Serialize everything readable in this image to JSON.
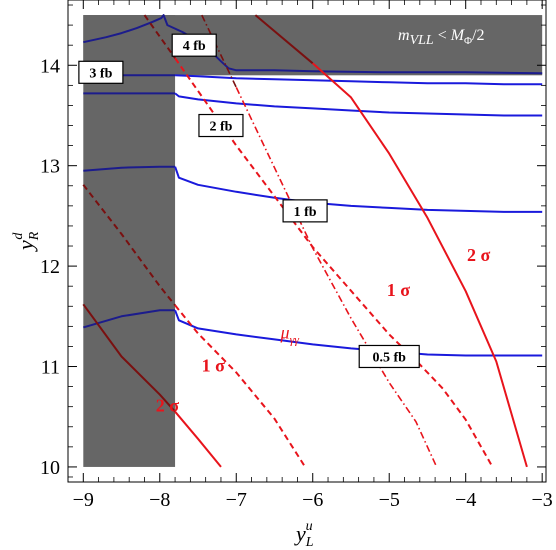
{
  "chart_data": {
    "type": "line",
    "title": "",
    "xlabel": "y_L^u",
    "ylabel": "y_R^d",
    "xlabel_parts": {
      "base": "y",
      "sub": "L",
      "sup": "u"
    },
    "ylabel_parts": {
      "base": "y",
      "sub": "R",
      "sup": "d"
    },
    "xlim": [
      -9.2,
      -2.95
    ],
    "ylim": [
      9.85,
      14.65
    ],
    "x_ticks": [
      -9,
      -8,
      -7,
      -6,
      -5,
      -4,
      -3
    ],
    "x_tick_labels": [
      "−9",
      "−8",
      "−7",
      "−6",
      "−5",
      "−4",
      "−3"
    ],
    "y_ticks": [
      10,
      11,
      12,
      13,
      14
    ],
    "y_tick_labels": [
      "10",
      "11",
      "12",
      "13",
      "14"
    ],
    "grid": false,
    "excluded_regions": [
      {
        "name": "vertical-band",
        "x": [
          -9.0,
          -7.8
        ],
        "y": [
          10.0,
          14.5
        ],
        "color": "#666666"
      },
      {
        "name": "top-band",
        "x": [
          -9.0,
          -3.0
        ],
        "y": [
          13.9,
          14.5
        ],
        "color": "#666666",
        "label": "m_VLL < M_Φ/2"
      }
    ],
    "region_label_parts": {
      "m": "m",
      "msub": "VLL",
      "op": " < ",
      "M": "M",
      "Msub": "Φ",
      "tail": "/2"
    },
    "cross_section_contours": [
      {
        "label": "0.5 fb",
        "label_at": [
          -5.0,
          11.1
        ],
        "color": "#1a1adc",
        "color_in_band": "#1c1c8c",
        "x": [
          -9.0,
          -8.5,
          -8.0,
          -7.8,
          -7.75,
          -7.5,
          -7.0,
          -6.5,
          -6.0,
          -5.5,
          -5.0,
          -4.5,
          -4.0,
          -3.5,
          -3.0
        ],
        "y": [
          11.39,
          11.5,
          11.56,
          11.56,
          11.46,
          11.38,
          11.32,
          11.27,
          11.22,
          11.18,
          11.15,
          11.12,
          11.11,
          11.11,
          11.11
        ]
      },
      {
        "label": "1 fb",
        "label_at": [
          -6.1,
          12.55
        ],
        "color": "#1a1adc",
        "color_in_band": "#1c1c8c",
        "x": [
          -9.0,
          -8.5,
          -8.0,
          -7.8,
          -7.75,
          -7.5,
          -7.0,
          -6.5,
          -6.0,
          -5.5,
          -5.0,
          -4.5,
          -4.0,
          -3.5,
          -3.0
        ],
        "y": [
          12.95,
          12.98,
          12.99,
          12.99,
          12.88,
          12.81,
          12.74,
          12.68,
          12.63,
          12.6,
          12.58,
          12.56,
          12.55,
          12.54,
          12.54
        ]
      },
      {
        "label": "2 fb",
        "label_at": [
          -7.2,
          13.4
        ],
        "color": "#1a1adc",
        "color_in_band": "#1c1c8c",
        "x": [
          -9.0,
          -8.5,
          -8.0,
          -7.8,
          -7.75,
          -7.5,
          -7.0,
          -6.5,
          -6.0,
          -5.5,
          -5.0,
          -4.5,
          -4.0,
          -3.5,
          -3.0
        ],
        "y": [
          13.72,
          13.72,
          13.72,
          13.72,
          13.69,
          13.66,
          13.62,
          13.59,
          13.57,
          13.55,
          13.53,
          13.52,
          13.51,
          13.5,
          13.5
        ]
      },
      {
        "label": "3 fb",
        "label_at": [
          -8.77,
          13.93
        ],
        "color": "#1a1adc",
        "color_in_band": "#1c1c8c",
        "x": [
          -9.0,
          -8.5,
          -8.0,
          -7.8,
          -7.5,
          -7.0,
          -6.5,
          -6.0,
          -5.5,
          -5.0,
          -4.5,
          -4.0,
          -3.5,
          -3.0
        ],
        "y": [
          13.9,
          13.9,
          13.9,
          13.9,
          13.89,
          13.87,
          13.86,
          13.85,
          13.84,
          13.83,
          13.82,
          13.82,
          13.81,
          13.81
        ]
      },
      {
        "label": "4 fb",
        "label_at": [
          -7.55,
          14.2
        ],
        "color": "#1a1adc",
        "color_in_band": "#1c1c8c",
        "x": [
          -9.0,
          -8.7,
          -8.5,
          -8.3,
          -8.1,
          -7.98,
          -7.95,
          -7.9,
          -7.7,
          -7.5,
          -7.35,
          -7.2,
          -7.1,
          -7.0,
          -6.5,
          -6.0,
          -5.0,
          -4.0,
          -3.0
        ],
        "y": [
          14.23,
          14.28,
          14.32,
          14.37,
          14.43,
          14.47,
          14.5,
          14.4,
          14.33,
          14.24,
          14.15,
          14.04,
          13.97,
          13.95,
          13.95,
          13.94,
          13.93,
          13.93,
          13.92
        ]
      }
    ],
    "significance_contours": [
      {
        "label": "1 σ",
        "label_at": [
          -4.88,
          11.7
        ],
        "style": "dashed",
        "color": "#e8141c",
        "color_in_band": "#7a1010",
        "x": [
          -8.2,
          -7.8,
          -7.0,
          -6.0,
          -5.0,
          -4.6,
          -4.3,
          -4.0,
          -3.65
        ],
        "y": [
          14.5,
          14.07,
          13.2,
          12.19,
          11.32,
          11.02,
          10.78,
          10.47,
          10.0
        ]
      },
      {
        "label": "1 σ",
        "label_at": [
          -7.3,
          10.95
        ],
        "style": "dashed",
        "color": "#e8141c",
        "color_in_band": "#7a1010",
        "x": [
          -9.0,
          -8.5,
          -8.0,
          -7.8,
          -7.5,
          -7.0,
          -6.5,
          -6.1
        ],
        "y": [
          12.81,
          12.32,
          11.8,
          11.61,
          11.33,
          10.94,
          10.48,
          10.0
        ]
      },
      {
        "label": "2 σ",
        "label_at": [
          -3.83,
          12.05
        ],
        "style": "solid",
        "color": "#e8141c",
        "color_in_band": "#7a1010",
        "x": [
          -6.75,
          -6.0,
          -5.5,
          -5.0,
          -4.5,
          -4.0,
          -3.6,
          -3.2
        ],
        "y": [
          14.5,
          14.02,
          13.68,
          13.12,
          12.48,
          11.75,
          11.05,
          10.0
        ]
      },
      {
        "label": "2 σ",
        "label_at": [
          -7.9,
          10.55
        ],
        "style": "solid",
        "color": "#e8141c",
        "color_in_band": "#7a1010",
        "x": [
          -9.0,
          -8.5,
          -8.0,
          -7.8,
          -7.5,
          -7.2
        ],
        "y": [
          11.62,
          11.1,
          10.72,
          10.55,
          10.28,
          10.0
        ]
      }
    ],
    "signal_strength_contour": {
      "label": "μ_γγ",
      "label_parts": {
        "base": "μ",
        "sub": "γγ"
      },
      "label_at": [
        -6.3,
        11.28
      ],
      "style": "dash-dot",
      "color": "#e8141c",
      "color_in_band": "#7a1010",
      "x": [
        -7.45,
        -7.0,
        -6.5,
        -6.0,
        -5.5,
        -5.0,
        -4.65,
        -4.38
      ],
      "y": [
        14.5,
        13.78,
        12.98,
        12.18,
        11.48,
        10.84,
        10.45,
        10.0
      ]
    }
  }
}
